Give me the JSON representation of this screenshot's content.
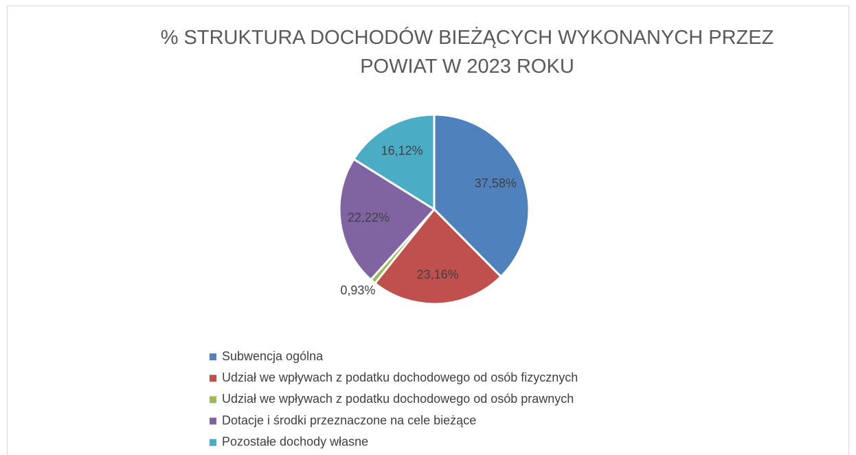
{
  "chart_data": {
    "type": "pie",
    "title": "% STRUKTURA DOCHODÓW BIEŻĄCYCH WYKONANYCH PRZEZ POWIAT W 2023 ROKU",
    "categories": [
      "Subwencja ogólna",
      "Udział we wpływach z podatku dochodowego od osób fizycznych",
      "Udział we wpływach z podatku dochodowego od osób prawnych",
      "Dotacje i środki przeznaczone na cele bieżące",
      "Pozostałe dochody własne"
    ],
    "values": [
      37.58,
      23.16,
      0.93,
      22.22,
      16.12
    ],
    "value_labels": [
      "37,58%",
      "23,16%",
      "0,93%",
      "22,22%",
      "16,12%"
    ],
    "colors": [
      "#4f81bd",
      "#c0504d",
      "#9bbb59",
      "#8064a2",
      "#4bacc6"
    ],
    "legend": "bottom"
  }
}
